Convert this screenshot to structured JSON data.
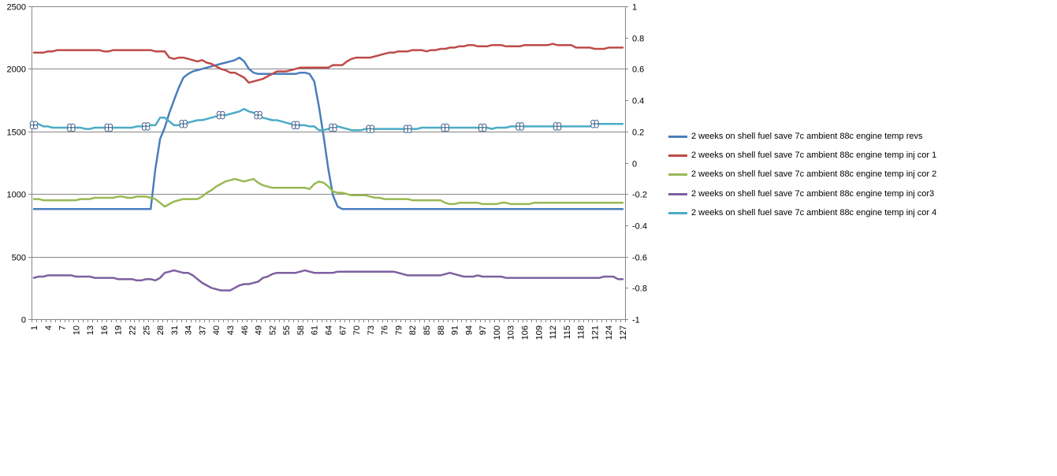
{
  "chart_data": {
    "type": "line",
    "title": "",
    "xlabel": "",
    "ylabel": "",
    "y_left": {
      "min": 0,
      "max": 2500,
      "ticks": [
        0,
        500,
        1000,
        1500,
        2000,
        2500
      ]
    },
    "y_right": {
      "min": -1,
      "max": 1,
      "ticks": [
        "-1",
        "-0.8",
        "-0.6",
        "-0.4",
        "-0.2",
        "0",
        "0.2",
        "0.4",
        "0.6",
        "0.8",
        "1"
      ]
    },
    "x": {
      "count": 127,
      "tick_start": 1,
      "tick_step": 3
    },
    "grid": "horizontal",
    "legend_position": "right",
    "series": [
      {
        "name": "2 weeks on shell fuel save 7c ambient 88c engine temp revs",
        "axis": "left",
        "color": "#4a7ebb",
        "values": [
          880,
          880,
          880,
          880,
          880,
          880,
          880,
          880,
          880,
          880,
          880,
          880,
          880,
          880,
          880,
          880,
          880,
          880,
          880,
          880,
          880,
          880,
          880,
          880,
          880,
          880,
          1200,
          1440,
          1530,
          1650,
          1750,
          1850,
          1930,
          1960,
          1980,
          1990,
          2000,
          2010,
          2020,
          2030,
          2040,
          2050,
          2060,
          2070,
          2090,
          2060,
          2000,
          1970,
          1960,
          1960,
          1960,
          1960,
          1960,
          1960,
          1960,
          1960,
          1960,
          1970,
          1970,
          1960,
          1900,
          1700,
          1460,
          1200,
          990,
          900,
          880,
          880,
          880,
          880,
          880,
          880,
          880,
          880,
          880,
          880,
          880,
          880,
          880,
          880,
          880,
          880,
          880,
          880,
          880,
          880,
          880,
          880,
          880,
          880,
          880,
          880,
          880,
          880,
          880,
          880,
          880,
          880,
          880,
          880,
          880,
          880,
          880,
          880,
          880,
          880,
          880,
          880,
          880,
          880,
          880,
          880,
          880,
          880,
          880,
          880,
          880,
          880,
          880,
          880,
          880,
          880,
          880,
          880,
          880,
          880,
          880
        ],
        "markers": "none"
      },
      {
        "name": "2 weeks on shell fuel save 7c ambient 88c engine temp inj cor 1",
        "axis": "left",
        "color": "#be4b48",
        "values": [
          2130,
          2130,
          2130,
          2140,
          2140,
          2150,
          2150,
          2150,
          2150,
          2150,
          2150,
          2150,
          2150,
          2150,
          2150,
          2140,
          2140,
          2150,
          2150,
          2150,
          2150,
          2150,
          2150,
          2150,
          2150,
          2150,
          2140,
          2140,
          2140,
          2090,
          2080,
          2090,
          2090,
          2080,
          2070,
          2060,
          2070,
          2050,
          2040,
          2020,
          2000,
          1990,
          1970,
          1970,
          1950,
          1930,
          1890,
          1900,
          1910,
          1920,
          1940,
          1960,
          1980,
          1980,
          1980,
          1990,
          2000,
          2010,
          2010,
          2010,
          2010,
          2010,
          2010,
          2010,
          2030,
          2030,
          2030,
          2060,
          2080,
          2090,
          2090,
          2090,
          2090,
          2100,
          2110,
          2120,
          2130,
          2130,
          2140,
          2140,
          2140,
          2150,
          2150,
          2150,
          2140,
          2150,
          2150,
          2160,
          2160,
          2170,
          2170,
          2180,
          2180,
          2190,
          2190,
          2180,
          2180,
          2180,
          2190,
          2190,
          2190,
          2180,
          2180,
          2180,
          2180,
          2190,
          2190,
          2190,
          2190,
          2190,
          2190,
          2200,
          2190,
          2190,
          2190,
          2190,
          2170,
          2170,
          2170,
          2170,
          2160,
          2160,
          2160,
          2170,
          2170,
          2170,
          2170
        ],
        "markers": "none"
      },
      {
        "name": "2 weeks on shell fuel save 7c ambient 88c engine temp inj cor 2",
        "axis": "left",
        "color": "#98b954",
        "values": [
          960,
          960,
          950,
          950,
          950,
          950,
          950,
          950,
          950,
          950,
          960,
          960,
          960,
          970,
          970,
          970,
          970,
          970,
          980,
          980,
          970,
          970,
          980,
          980,
          980,
          970,
          960,
          930,
          900,
          920,
          940,
          950,
          960,
          960,
          960,
          960,
          980,
          1010,
          1030,
          1060,
          1080,
          1100,
          1110,
          1120,
          1110,
          1100,
          1110,
          1120,
          1090,
          1070,
          1060,
          1050,
          1050,
          1050,
          1050,
          1050,
          1050,
          1050,
          1050,
          1040,
          1080,
          1100,
          1090,
          1060,
          1020,
          1010,
          1010,
          1000,
          990,
          990,
          990,
          990,
          980,
          970,
          970,
          960,
          960,
          960,
          960,
          960,
          960,
          950,
          950,
          950,
          950,
          950,
          950,
          950,
          930,
          920,
          920,
          930,
          930,
          930,
          930,
          930,
          920,
          920,
          920,
          920,
          930,
          930,
          920,
          920,
          920,
          920,
          920,
          930,
          930,
          930,
          930,
          930,
          930,
          930,
          930,
          930,
          930,
          930,
          930,
          930,
          930,
          930,
          930,
          930,
          930,
          930,
          930
        ],
        "markers": "none"
      },
      {
        "name": "2 weeks on shell fuel save 7c ambient 88c engine temp inj cor3",
        "axis": "left",
        "color": "#7d60a0",
        "values": [
          330,
          340,
          340,
          350,
          350,
          350,
          350,
          350,
          350,
          340,
          340,
          340,
          340,
          330,
          330,
          330,
          330,
          330,
          320,
          320,
          320,
          320,
          310,
          310,
          320,
          320,
          310,
          330,
          370,
          380,
          390,
          380,
          370,
          370,
          350,
          320,
          290,
          270,
          250,
          240,
          230,
          230,
          230,
          250,
          270,
          280,
          280,
          290,
          300,
          330,
          340,
          360,
          370,
          370,
          370,
          370,
          370,
          380,
          390,
          380,
          370,
          370,
          370,
          370,
          370,
          380,
          380,
          380,
          380,
          380,
          380,
          380,
          380,
          380,
          380,
          380,
          380,
          380,
          370,
          360,
          350,
          350,
          350,
          350,
          350,
          350,
          350,
          350,
          360,
          370,
          360,
          350,
          340,
          340,
          340,
          350,
          340,
          340,
          340,
          340,
          340,
          330,
          330,
          330,
          330,
          330,
          330,
          330,
          330,
          330,
          330,
          330,
          330,
          330,
          330,
          330,
          330,
          330,
          330,
          330,
          330,
          330,
          340,
          340,
          340,
          320,
          320
        ],
        "markers": "none"
      },
      {
        "name": "2 weeks on shell fuel save 7c ambient 88c engine temp inj cor 4",
        "axis": "left",
        "color": "#4bacc6",
        "values": [
          1550,
          1560,
          1540,
          1540,
          1530,
          1530,
          1530,
          1530,
          1530,
          1530,
          1530,
          1520,
          1520,
          1530,
          1530,
          1530,
          1530,
          1530,
          1530,
          1530,
          1530,
          1530,
          1540,
          1540,
          1540,
          1550,
          1550,
          1610,
          1610,
          1580,
          1550,
          1550,
          1560,
          1570,
          1580,
          1590,
          1590,
          1600,
          1610,
          1620,
          1630,
          1630,
          1640,
          1650,
          1660,
          1680,
          1660,
          1650,
          1630,
          1610,
          1600,
          1590,
          1590,
          1580,
          1570,
          1560,
          1550,
          1550,
          1550,
          1540,
          1540,
          1510,
          1510,
          1520,
          1530,
          1540,
          1530,
          1520,
          1510,
          1510,
          1510,
          1520,
          1520,
          1520,
          1520,
          1520,
          1520,
          1520,
          1520,
          1520,
          1520,
          1520,
          1520,
          1530,
          1530,
          1530,
          1530,
          1530,
          1530,
          1530,
          1530,
          1530,
          1530,
          1530,
          1530,
          1530,
          1530,
          1530,
          1520,
          1530,
          1530,
          1530,
          1540,
          1540,
          1540,
          1540,
          1540,
          1540,
          1540,
          1540,
          1540,
          1540,
          1540,
          1540,
          1540,
          1540,
          1540,
          1540,
          1540,
          1540,
          1560,
          1560,
          1560,
          1560,
          1560,
          1560,
          1560
        ],
        "markers": "quatrefoil every 8 points"
      }
    ]
  }
}
